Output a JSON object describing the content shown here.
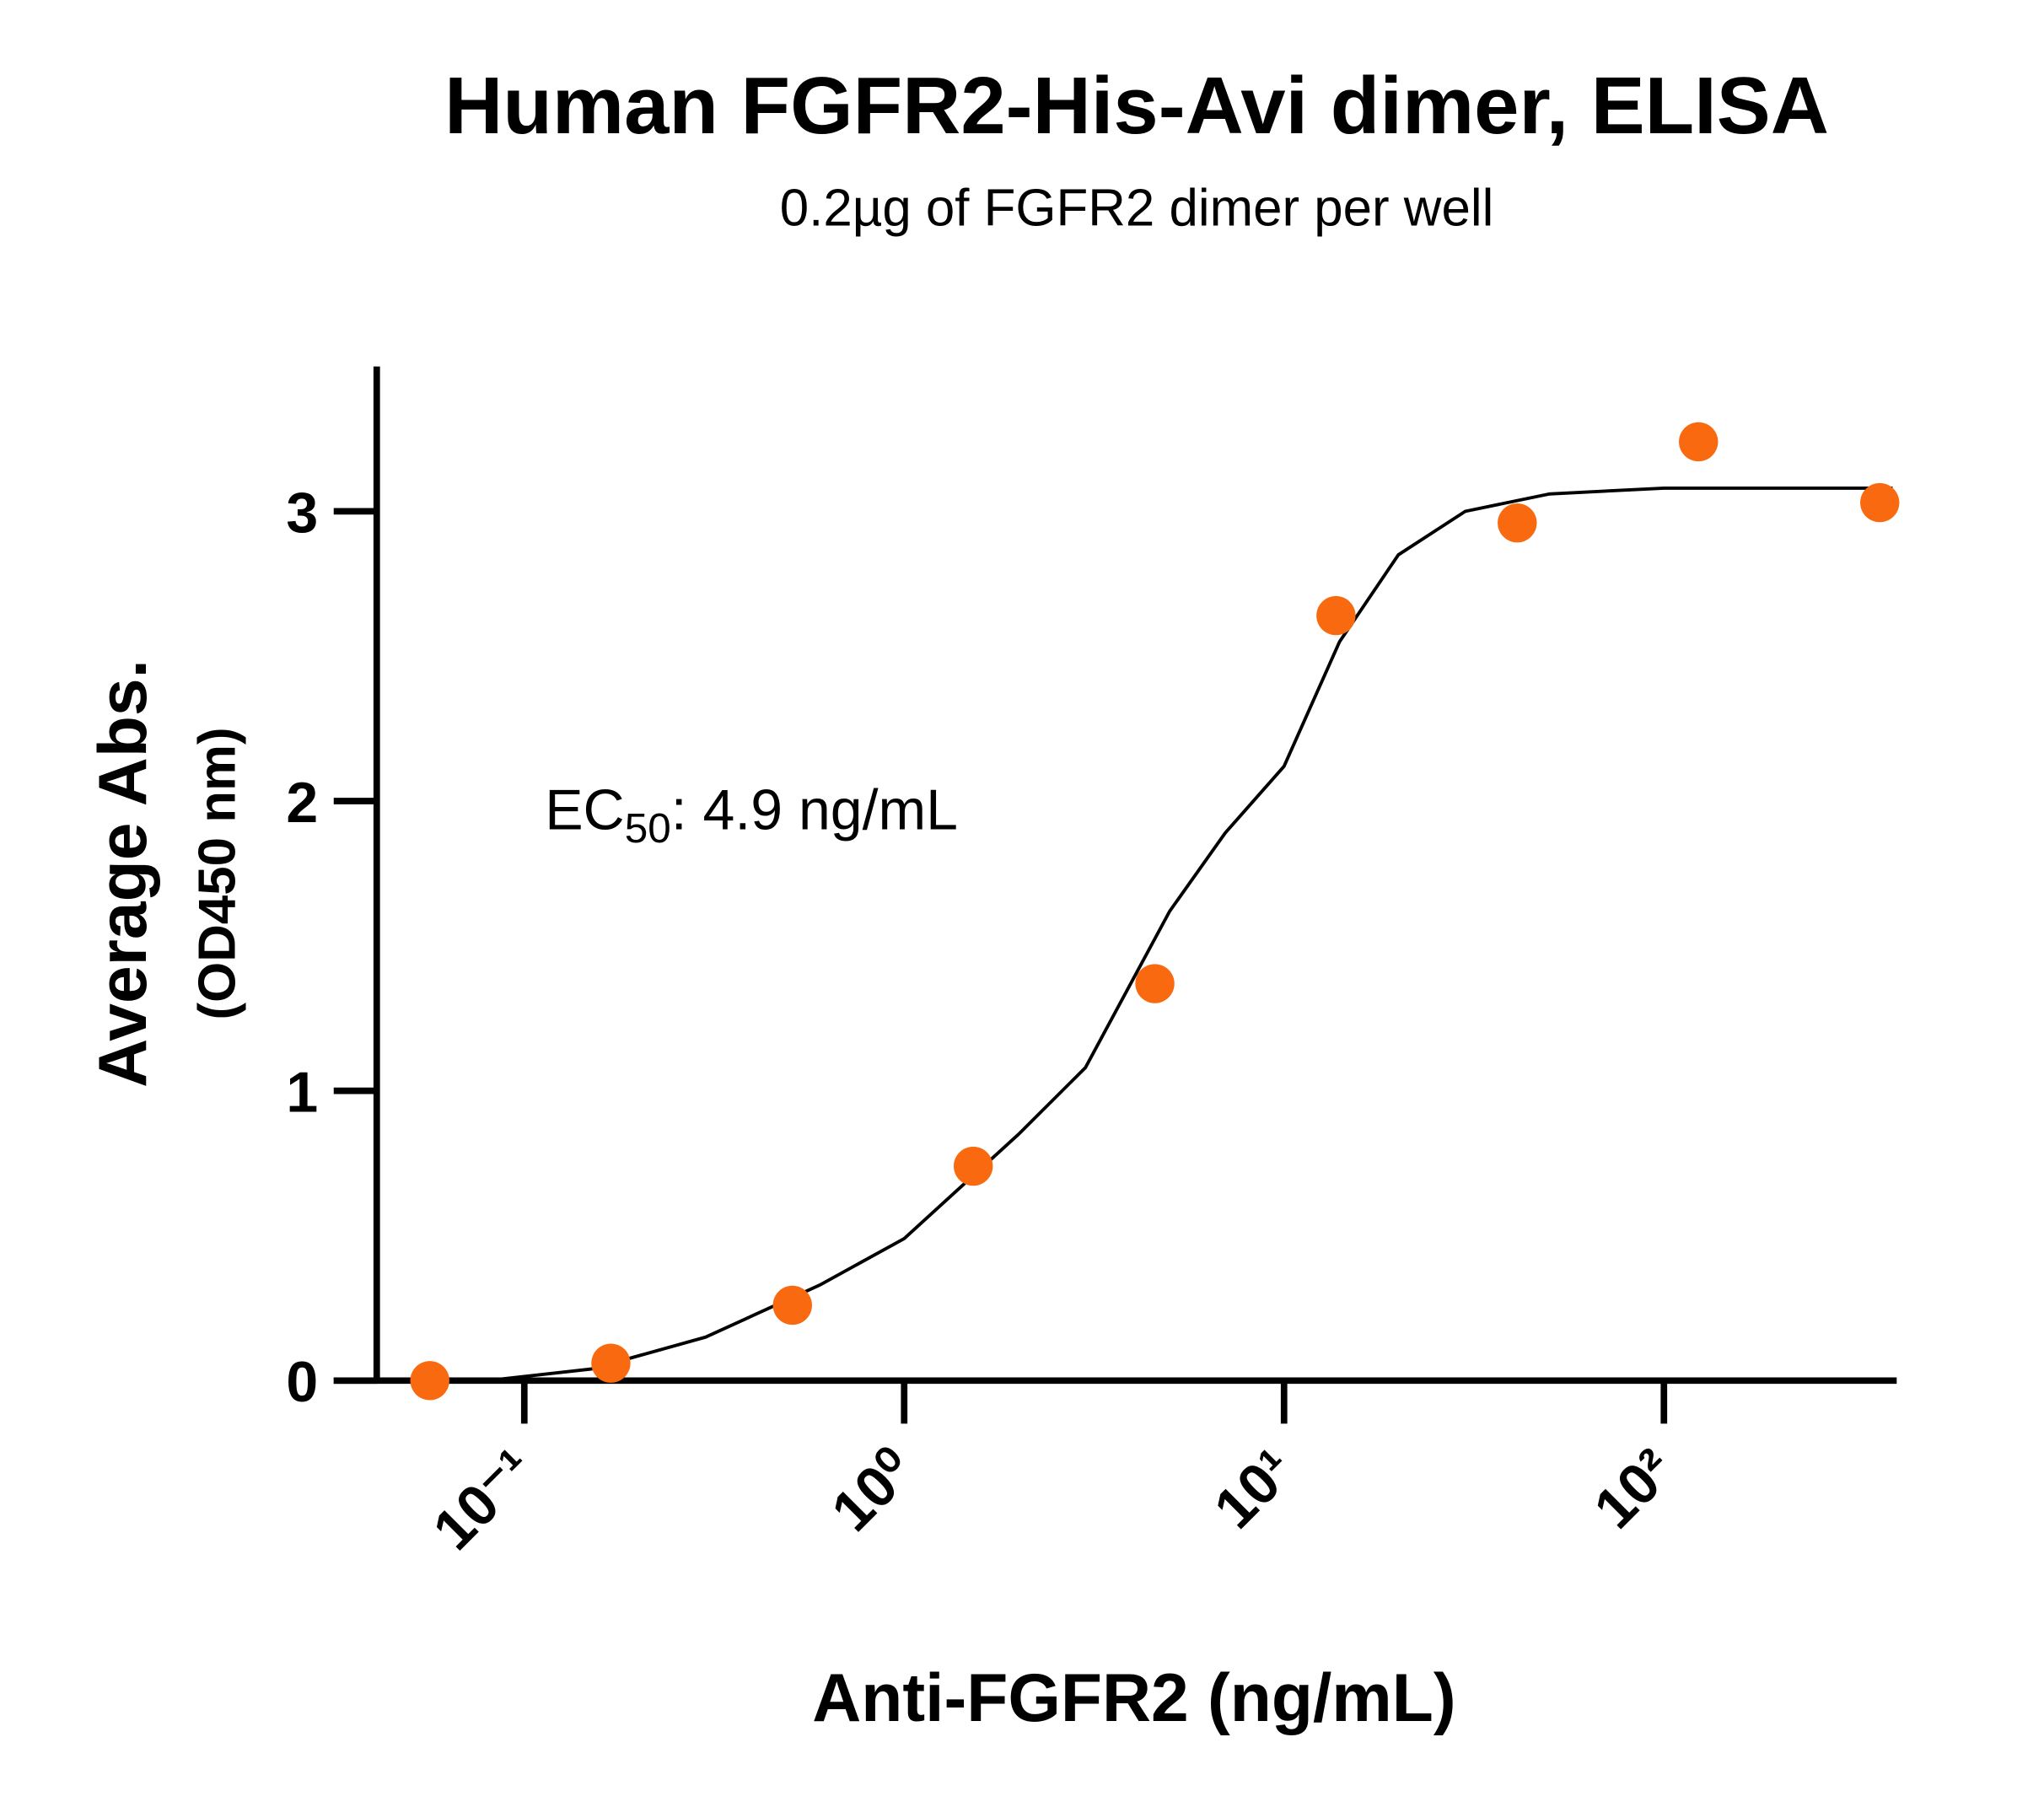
{
  "chart_data": {
    "type": "scatter",
    "title": "Human FGFR2-His-Avi dimer, ELISA",
    "subtitle": "0.2µg of FGFR2 dimer per well",
    "x_label": "Anti-FGFR2 (ng/mL)",
    "y_label": [
      "Average Abs.",
      "(OD450 nm)"
    ],
    "annotation": {
      "text": "EC",
      "subscript": "50",
      "rest": ": 4.9 ng/mL"
    },
    "x_log": true,
    "xlim": [
      0.032,
      410
    ],
    "ylim": [
      0,
      3.5
    ],
    "xticks": [
      {
        "value": 0.1,
        "label": "10⁻¹"
      },
      {
        "value": 1,
        "label": "10⁰"
      },
      {
        "value": 10,
        "label": "10¹"
      },
      {
        "value": 100,
        "label": "10²"
      }
    ],
    "yticks": [
      0,
      1,
      2,
      3
    ],
    "series": [
      {
        "type": "scatter",
        "color": "#f96a10",
        "x": [
          0.0564,
          0.169,
          0.508,
          1.52,
          4.57,
          13.7,
          41.1,
          123.3,
          370
        ],
        "values": [
          0.0,
          0.06,
          0.26,
          0.74,
          1.37,
          2.64,
          2.96,
          3.24,
          3.03
        ]
      },
      {
        "type": "line",
        "color": "#000000",
        "x": [
          0.08,
          0.15,
          0.3,
          0.6,
          1,
          2,
          3,
          5,
          7,
          10,
          14,
          20,
          30,
          50,
          100,
          400
        ],
        "values": [
          0,
          0.04,
          0.15,
          0.33,
          0.49,
          0.85,
          1.08,
          1.62,
          1.89,
          2.12,
          2.55,
          2.85,
          3.0,
          3.06,
          3.08,
          3.08
        ]
      }
    ]
  }
}
